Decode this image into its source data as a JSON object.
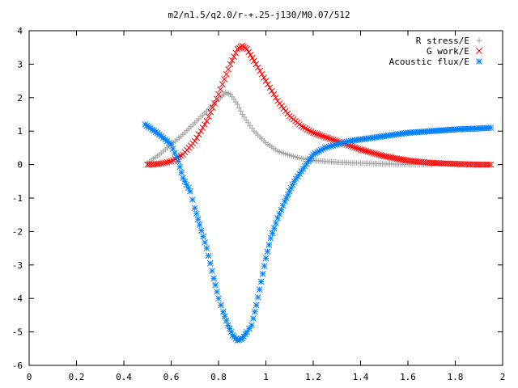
{
  "chart_data": {
    "type": "scatter",
    "title": "m2/n1.5/q2.0/r-+.25-j130/M0.07/512",
    "xlabel": "",
    "ylabel": "",
    "xlim": [
      0,
      2
    ],
    "ylim": [
      -6,
      4
    ],
    "xticks": [
      "0",
      "0.2",
      "0.4",
      "0.6",
      "0.8",
      "1",
      "1.2",
      "1.4",
      "1.6",
      "1.8",
      "2"
    ],
    "yticks": [
      "4",
      "3",
      "2",
      "1",
      "0",
      "-1",
      "-2",
      "-3",
      "-4",
      "-5",
      "-6"
    ],
    "grid": false,
    "legend_position": "top-right",
    "series": [
      {
        "name": "R stress/E",
        "marker": "plus",
        "color": "#a0a0a0",
        "x": [
          0.5,
          0.55,
          0.6,
          0.65,
          0.7,
          0.75,
          0.8,
          0.83,
          0.85,
          0.88,
          0.9,
          0.95,
          1.0,
          1.05,
          1.1,
          1.15,
          1.2,
          1.3,
          1.4,
          1.5,
          1.6,
          1.7
        ],
        "y": [
          0.05,
          0.3,
          0.6,
          0.9,
          1.25,
          1.6,
          1.95,
          2.15,
          2.1,
          1.8,
          1.5,
          1.0,
          0.65,
          0.4,
          0.28,
          0.18,
          0.12,
          0.07,
          0.04,
          0.02,
          0.01,
          0.0
        ]
      },
      {
        "name": "G work/E",
        "marker": "cross",
        "color": "#ff0000",
        "x": [
          0.5,
          0.55,
          0.6,
          0.65,
          0.7,
          0.75,
          0.8,
          0.85,
          0.88,
          0.9,
          0.92,
          0.95,
          1.0,
          1.05,
          1.1,
          1.15,
          1.2,
          1.3,
          1.4,
          1.5,
          1.6,
          1.7,
          1.8,
          1.9,
          1.95
        ],
        "y": [
          0.0,
          0.02,
          0.1,
          0.3,
          0.7,
          1.3,
          2.1,
          3.0,
          3.45,
          3.55,
          3.45,
          3.1,
          2.5,
          1.9,
          1.45,
          1.15,
          0.95,
          0.7,
          0.45,
          0.25,
          0.12,
          0.05,
          0.02,
          0.0,
          0.0
        ]
      },
      {
        "name": "Acoustic flux/E",
        "marker": "star",
        "color": "#0080ff",
        "x": [
          0.49,
          0.52,
          0.55,
          0.6,
          0.63,
          0.65,
          0.68,
          0.7,
          0.72,
          0.75,
          0.78,
          0.8,
          0.82,
          0.84,
          0.86,
          0.88,
          0.9,
          0.92,
          0.94,
          0.96,
          0.98,
          1.0,
          1.02,
          1.05,
          1.08,
          1.1,
          1.12,
          1.15,
          1.18,
          1.2,
          1.25,
          1.3,
          1.35,
          1.4,
          1.45,
          1.5,
          1.55,
          1.6,
          1.7,
          1.8,
          1.9,
          1.95
        ],
        "y": [
          1.2,
          1.05,
          0.9,
          0.6,
          0.1,
          -0.4,
          -0.8,
          -1.3,
          -1.8,
          -2.5,
          -3.4,
          -4.0,
          -4.4,
          -4.8,
          -5.1,
          -5.25,
          -5.2,
          -5.0,
          -4.8,
          -4.2,
          -3.5,
          -2.8,
          -2.2,
          -1.6,
          -1.1,
          -0.8,
          -0.5,
          -0.2,
          0.1,
          0.3,
          0.5,
          0.6,
          0.7,
          0.75,
          0.8,
          0.85,
          0.9,
          0.95,
          1.0,
          1.05,
          1.08,
          1.1
        ]
      }
    ]
  }
}
